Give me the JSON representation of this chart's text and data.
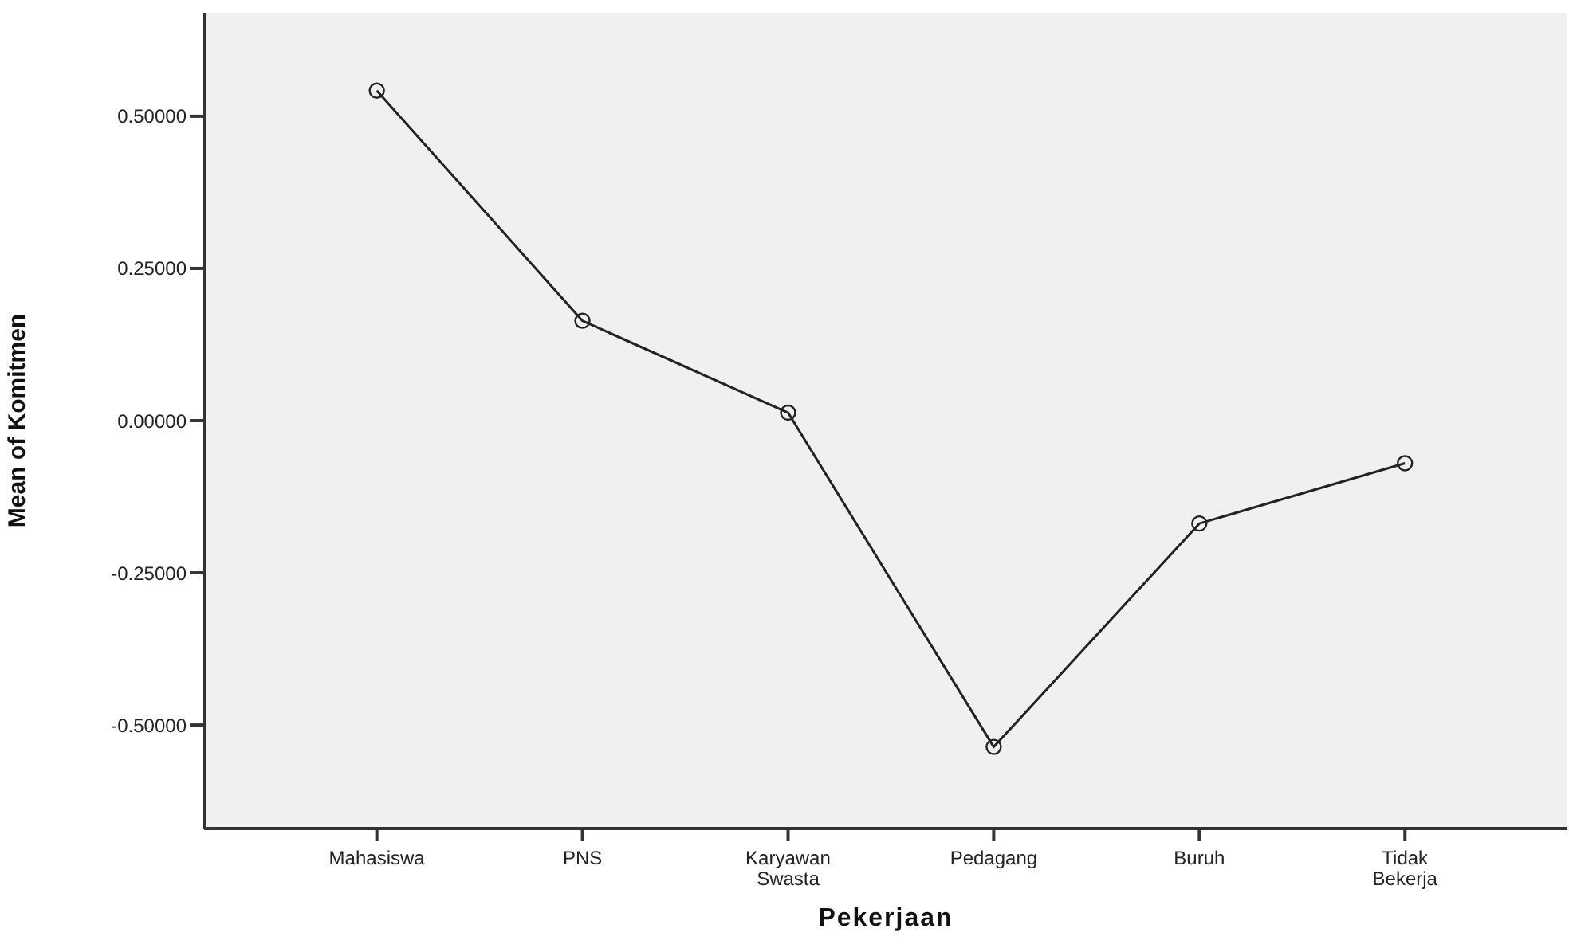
{
  "chart_data": {
    "type": "line",
    "xlabel": "Pekerjaan",
    "ylabel": "Mean of Komitmen",
    "categories": [
      "Mahasiswa",
      "PNS",
      "Karyawan Swasta",
      "Pedagang",
      "Buruh",
      "Tidak Bekerja"
    ],
    "series": [
      {
        "color": "#222222",
        "values": [
          0.542,
          0.164,
          0.013,
          -0.536,
          -0.169,
          -0.07
        ]
      }
    ],
    "ylim": [
      -0.67,
      0.67
    ],
    "yticks": [
      {
        "value": -0.5,
        "label": "-0.50000"
      },
      {
        "value": -0.25,
        "label": "-0.25000"
      },
      {
        "value": 0,
        "label": "0.00000"
      },
      {
        "value": 0.25,
        "label": "0.25000"
      },
      {
        "value": 0.5,
        "label": "0.50000"
      }
    ],
    "grid": false,
    "marker": "circle",
    "line_style": "solid"
  }
}
